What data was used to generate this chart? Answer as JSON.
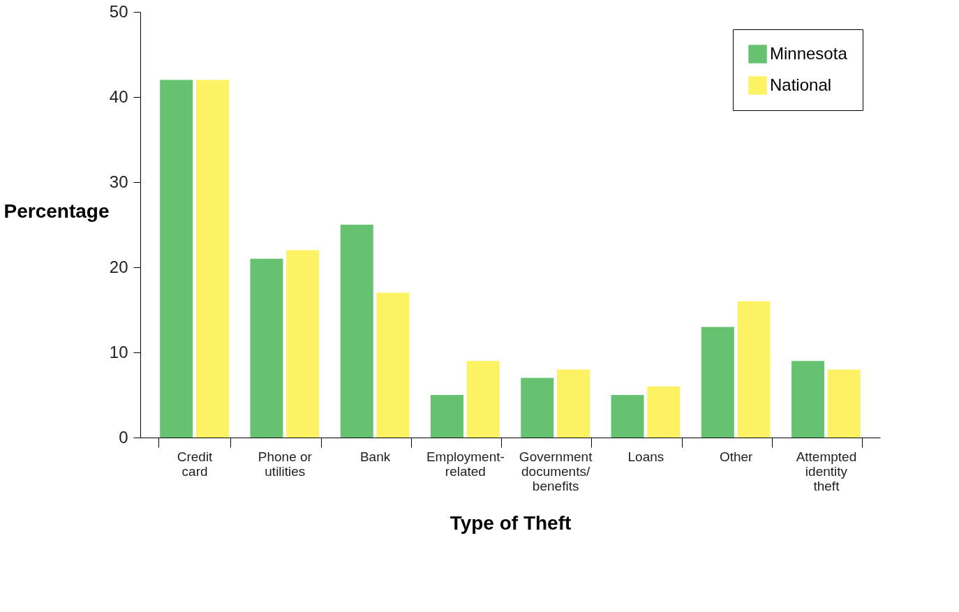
{
  "chart_data": {
    "type": "bar",
    "xlabel": "Type of Theft",
    "ylabel": "Percentage",
    "categories": [
      "Credit\ncard",
      "Phone or\nutilities",
      "Bank",
      "Employment-\nrelated",
      "Government\ndocuments/\nbenefits",
      "Loans",
      "Other",
      "Attempted\nidentity\ntheft"
    ],
    "series": [
      {
        "name": "Minnesota",
        "color": "#66c170",
        "values": [
          42,
          21,
          25,
          5,
          7,
          5,
          13,
          9
        ]
      },
      {
        "name": "National",
        "color": "#fdf263",
        "values": [
          42,
          22,
          17,
          9,
          8,
          6,
          16,
          8
        ]
      }
    ],
    "ylim": [
      0,
      50
    ],
    "yticks": [
      0,
      10,
      20,
      30,
      40,
      50
    ],
    "grid": false,
    "legend": "top right"
  }
}
